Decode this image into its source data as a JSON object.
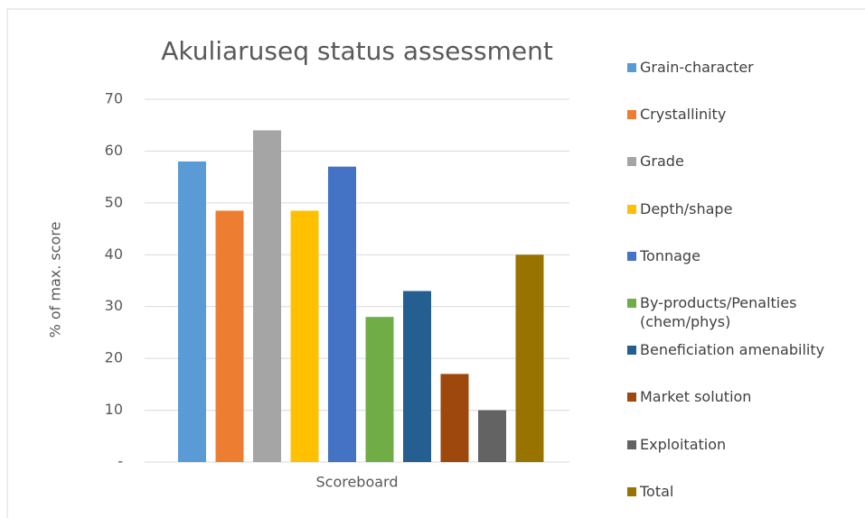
{
  "chart_data": {
    "type": "bar",
    "title": "Akuliaruseq status assessment",
    "y_label": "% of max. score",
    "categories": [
      "Scoreboard"
    ],
    "series": [
      {
        "name": "Grain-character",
        "color": "#5b9bd5",
        "values": [
          58
        ]
      },
      {
        "name": "Crystallinity",
        "color": "#ed7d31",
        "values": [
          48.5
        ]
      },
      {
        "name": "Grade",
        "color": "#a5a5a5",
        "values": [
          64
        ]
      },
      {
        "name": "Depth/shape",
        "color": "#ffc000",
        "values": [
          48.5
        ]
      },
      {
        "name": "Tonnage",
        "color": "#4472c4",
        "values": [
          57
        ]
      },
      {
        "name": "By-products/Penalties (chem/phys)",
        "color": "#70ad47",
        "values": [
          28
        ]
      },
      {
        "name": "Beneficiation amenability",
        "color": "#255e91",
        "values": [
          33
        ]
      },
      {
        "name": "Market solution",
        "color": "#9e480e",
        "values": [
          17
        ]
      },
      {
        "name": "Exploitation",
        "color": "#636363",
        "values": [
          10
        ]
      },
      {
        "name": "Total",
        "color": "#997300",
        "values": [
          40
        ]
      }
    ],
    "ylim": [
      0,
      70
    ],
    "yticks": [
      {
        "value": 0,
        "label": "-"
      },
      10,
      20,
      30,
      40,
      50,
      60,
      70
    ],
    "grid": true,
    "legend": "right"
  }
}
